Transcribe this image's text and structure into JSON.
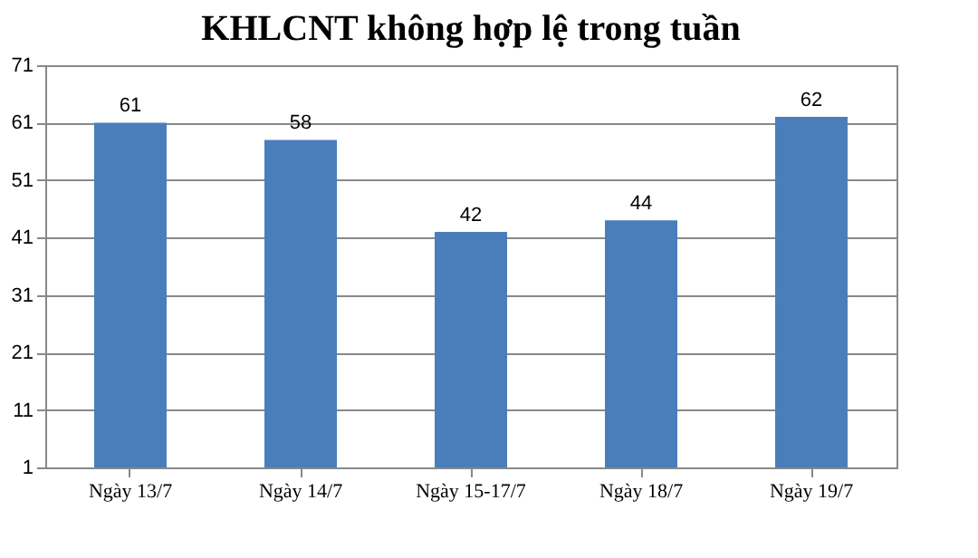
{
  "chart_data": {
    "type": "bar",
    "title": "KHLCNT không hợp lệ trong tuần",
    "categories": [
      "Ngày 13/7",
      "Ngày 14/7",
      "Ngày 15-17/7",
      "Ngày 18/7",
      "Ngày 19/7"
    ],
    "values": [
      61,
      58,
      42,
      44,
      62
    ],
    "color": "#4a7ebb",
    "ylim": [
      1,
      71
    ],
    "yticks": [
      1,
      11,
      21,
      31,
      41,
      51,
      61,
      71
    ],
    "grid": "y",
    "data_labels": true
  }
}
